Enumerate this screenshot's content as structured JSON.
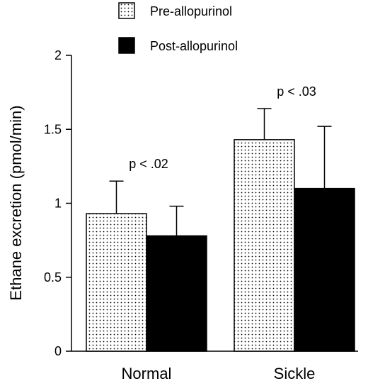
{
  "chart_data": {
    "type": "bar",
    "title": "",
    "xlabel": "",
    "ylabel": "Ethane excretion (pmol/min)",
    "categories": [
      "Normal",
      "Sickle"
    ],
    "ylim": [
      0,
      2
    ],
    "yticks": [
      0,
      0.5,
      1,
      1.5,
      2
    ],
    "ytick_labels": [
      "0",
      "0.5",
      "1",
      "1.5",
      "2"
    ],
    "grid": false,
    "legend_position": "top-center",
    "series": [
      {
        "name": "Pre-allopurinol",
        "values": [
          0.93,
          1.43
        ],
        "error_upper": [
          0.22,
          0.21
        ],
        "pattern": "stippled",
        "color": "#ffffff"
      },
      {
        "name": "Post-allopurinol",
        "values": [
          0.78,
          1.1
        ],
        "error_upper": [
          0.2,
          0.42
        ],
        "pattern": "solid",
        "color": "#000000"
      }
    ],
    "annotations": [
      {
        "text": "p < .02",
        "category": "Normal"
      },
      {
        "text": "p < .03",
        "category": "Sickle"
      }
    ]
  }
}
